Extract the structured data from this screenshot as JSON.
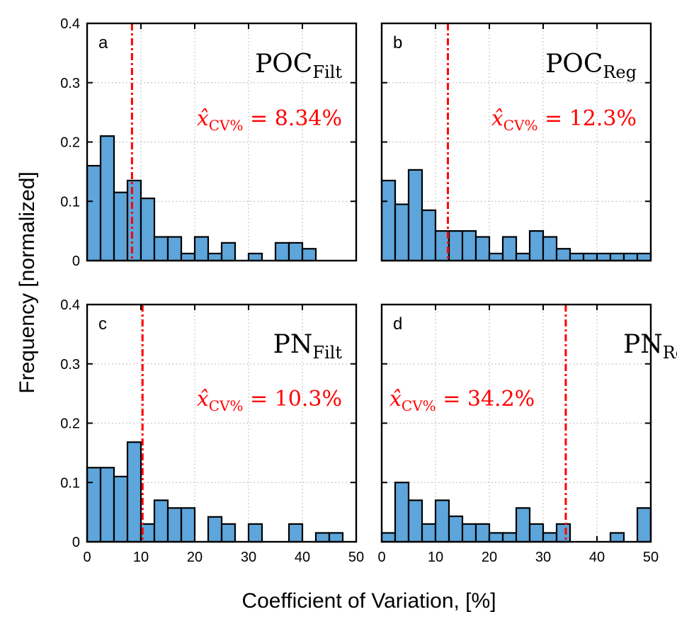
{
  "figure": {
    "xlabel": "Coefficient of Variation, [%]",
    "ylabel": "Frequency [normalized]"
  },
  "colors": {
    "bar": "#5DA5DA",
    "edge": "#000000",
    "median": "#FF0000",
    "grid": "#C8C8C8"
  },
  "chart_data": [
    {
      "type": "bar",
      "letter": "a",
      "title_main": "POC",
      "title_sub": "Filt",
      "annotation_sub": "CV%",
      "annotation_value": "= 8.34%",
      "median": 8.34,
      "bin_edges": [
        0,
        2.5,
        5,
        7.5,
        10,
        12.5,
        15,
        17.5,
        20,
        22.5,
        25,
        27.5,
        30,
        32.5,
        35,
        37.5,
        40,
        42.5,
        45,
        47.5,
        50
      ],
      "values": [
        0.16,
        0.21,
        0.115,
        0.135,
        0.105,
        0.04,
        0.04,
        0.012,
        0.04,
        0.012,
        0.03,
        0.0,
        0.012,
        0.0,
        0.03,
        0.03,
        0.02,
        0.0,
        0.0,
        0.0
      ],
      "xlim": [
        0,
        50
      ],
      "ylim": [
        0,
        0.4
      ],
      "xticks": [
        "0",
        "10",
        "20",
        "30",
        "40",
        "50"
      ],
      "yticks": [
        "0",
        "0.1",
        "0.2",
        "0.3",
        "0.4"
      ],
      "show_xticklabels": false,
      "show_yticklabels": true
    },
    {
      "type": "bar",
      "letter": "b",
      "title_main": "POC",
      "title_sub": "Reg",
      "annotation_sub": "CV%",
      "annotation_value": "= 12.3%",
      "median": 12.3,
      "bin_edges": [
        0,
        2.5,
        5,
        7.5,
        10,
        12.5,
        15,
        17.5,
        20,
        22.5,
        25,
        27.5,
        30,
        32.5,
        35,
        37.5,
        40,
        42.5,
        45,
        47.5,
        50
      ],
      "values": [
        0.135,
        0.095,
        0.153,
        0.085,
        0.05,
        0.05,
        0.05,
        0.04,
        0.012,
        0.04,
        0.012,
        0.05,
        0.04,
        0.02,
        0.012,
        0.012,
        0.012,
        0.012,
        0.012,
        0.012
      ],
      "xlim": [
        0,
        50
      ],
      "ylim": [
        0,
        0.4
      ],
      "xticks": [
        "0",
        "10",
        "20",
        "30",
        "40",
        "50"
      ],
      "yticks": [
        "0",
        "0.1",
        "0.2",
        "0.3",
        "0.4"
      ],
      "show_xticklabels": false,
      "show_yticklabels": false
    },
    {
      "type": "bar",
      "letter": "c",
      "title_main": "PN",
      "title_sub": "Filt",
      "annotation_sub": "CV%",
      "annotation_value": "= 10.3%",
      "median": 10.3,
      "bin_edges": [
        0,
        2.5,
        5,
        7.5,
        10,
        12.5,
        15,
        17.5,
        20,
        22.5,
        25,
        27.5,
        30,
        32.5,
        35,
        37.5,
        40,
        42.5,
        45,
        47.5,
        50
      ],
      "values": [
        0.125,
        0.125,
        0.11,
        0.168,
        0.03,
        0.07,
        0.057,
        0.057,
        0.0,
        0.042,
        0.03,
        0.0,
        0.03,
        0.0,
        0.0,
        0.03,
        0.0,
        0.015,
        0.015,
        0.0
      ],
      "xlim": [
        0,
        50
      ],
      "ylim": [
        0,
        0.4
      ],
      "xticks": [
        "0",
        "10",
        "20",
        "30",
        "40",
        "50"
      ],
      "yticks": [
        "0",
        "0.1",
        "0.2",
        "0.3",
        "0.4"
      ],
      "show_xticklabels": true,
      "show_yticklabels": true
    },
    {
      "type": "bar",
      "letter": "d",
      "title_main": "PN",
      "title_sub": "Reg",
      "annotation_sub": "CV%",
      "annotation_value": "= 34.2%",
      "median": 34.2,
      "bin_edges": [
        0,
        2.5,
        5,
        7.5,
        10,
        12.5,
        15,
        17.5,
        20,
        22.5,
        25,
        27.5,
        30,
        32.5,
        35,
        37.5,
        40,
        42.5,
        45,
        47.5,
        50
      ],
      "values": [
        0.015,
        0.1,
        0.07,
        0.03,
        0.07,
        0.043,
        0.03,
        0.03,
        0.015,
        0.015,
        0.057,
        0.03,
        0.015,
        0.03,
        0.0,
        0.0,
        0.0,
        0.015,
        0.0,
        0.057
      ],
      "xlim": [
        0,
        50
      ],
      "ylim": [
        0,
        0.4
      ],
      "xticks": [
        "0",
        "10",
        "20",
        "30",
        "40",
        "50"
      ],
      "yticks": [
        "0",
        "0.1",
        "0.2",
        "0.3",
        "0.4"
      ],
      "show_xticklabels": true,
      "show_yticklabels": false
    }
  ]
}
